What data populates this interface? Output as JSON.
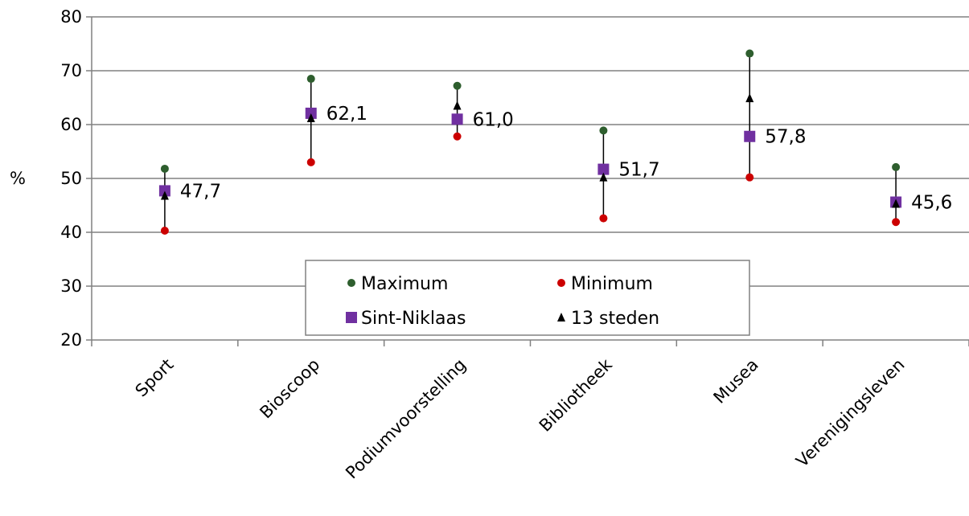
{
  "chart_data": {
    "type": "scatter",
    "categories": [
      "Sport",
      "Bioscoop",
      "Podiumvoorstelling",
      "Bibliotheek",
      "Musea",
      "Verenigingsleven"
    ],
    "ylabel": "%",
    "ylim": [
      20,
      80
    ],
    "yticks": [
      20,
      30,
      40,
      50,
      60,
      70,
      80
    ],
    "grid": true,
    "legend_placement": "bottom-center",
    "series": [
      {
        "name": "Maximum",
        "marker": "circle",
        "color": "#2e5e2e",
        "values": [
          51.8,
          68.5,
          67.2,
          58.9,
          73.2,
          52.1
        ]
      },
      {
        "name": "Minimum",
        "marker": "circle",
        "color": "#cc0000",
        "values": [
          40.3,
          53.0,
          57.8,
          42.6,
          50.2,
          41.9
        ]
      },
      {
        "name": "Sint-Niklaas",
        "marker": "square",
        "color": "#7030a0",
        "values": [
          47.7,
          62.1,
          61.0,
          51.7,
          57.8,
          45.6
        ]
      },
      {
        "name": "13 steden",
        "marker": "triangle",
        "color": "#000000",
        "values": [
          46.8,
          61.2,
          63.5,
          50.2,
          64.9,
          45.3
        ]
      }
    ],
    "data_labels": [
      "47,7",
      "62,1",
      "61,0",
      "51,7",
      "57,8",
      "45,6"
    ]
  }
}
